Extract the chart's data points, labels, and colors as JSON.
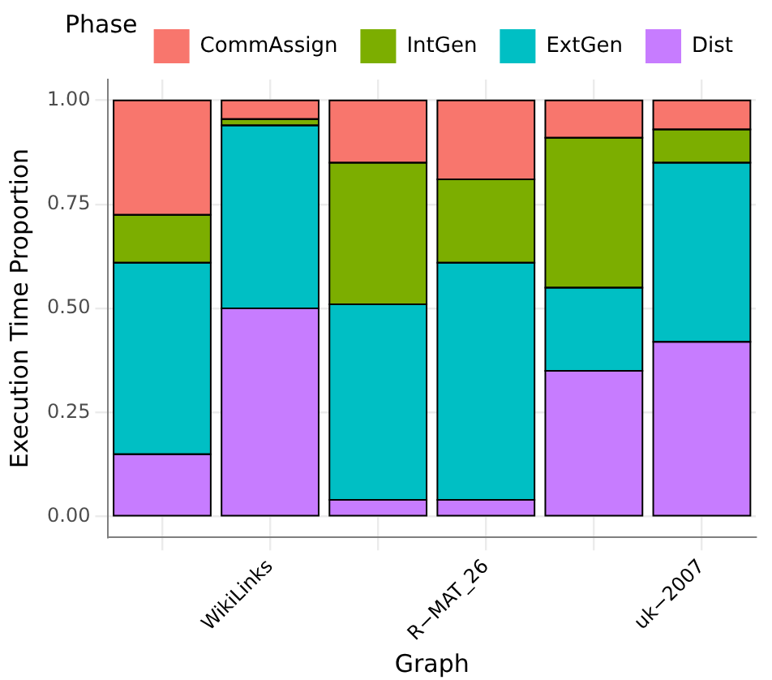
{
  "chart_data": {
    "type": "bar",
    "stacked": true,
    "xlabel": "Graph",
    "ylabel": "Execution Time Proportion",
    "legend_title": "Phase",
    "legend": "top",
    "categories": [
      null,
      "WikiLinks",
      null,
      "R−MAT_26",
      null,
      "uk−2007"
    ],
    "series": [
      {
        "name": "Dist",
        "color": "#c77cff",
        "values": [
          0.15,
          0.5,
          0.04,
          0.04,
          0.35,
          0.42
        ]
      },
      {
        "name": "ExtGen",
        "color": "#00bfc4",
        "values": [
          0.46,
          0.44,
          0.47,
          0.57,
          0.2,
          0.43
        ]
      },
      {
        "name": "IntGen",
        "color": "#7cae00",
        "values": [
          0.115,
          0.015,
          0.34,
          0.2,
          0.36,
          0.08
        ]
      },
      {
        "name": "CommAssign",
        "color": "#f8766d",
        "values": [
          0.275,
          0.045,
          0.15,
          0.19,
          0.09,
          0.07
        ]
      }
    ],
    "ylim": [
      -0.05,
      1.05
    ],
    "yticks": [
      {
        "value": 0,
        "label": "0.00"
      },
      {
        "value": 0.25,
        "label": "0.25"
      },
      {
        "value": 0.5,
        "label": "0.50"
      },
      {
        "value": 0.75,
        "label": "0.75"
      },
      {
        "value": 1,
        "label": "1.00"
      }
    ],
    "grid": true
  }
}
